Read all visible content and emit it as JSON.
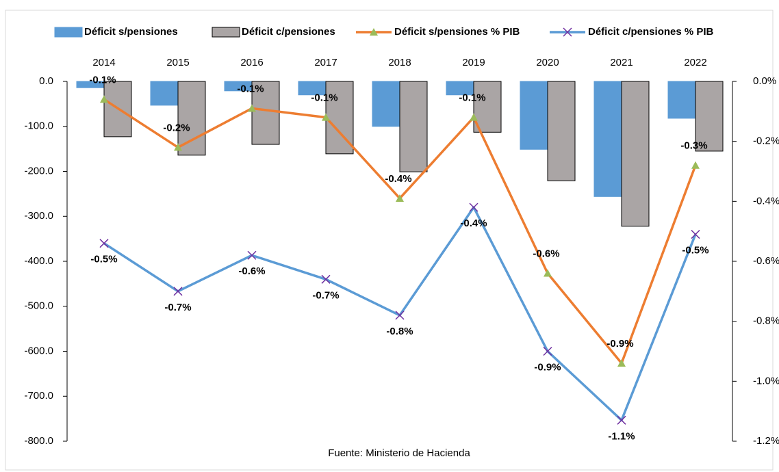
{
  "chart_data": {
    "type": "bar_line",
    "categories": [
      "2014",
      "2015",
      "2016",
      "2017",
      "2018",
      "2019",
      "2020",
      "2021",
      "2022"
    ],
    "series": [
      {
        "name": "Déficit s/pensiones",
        "type": "bar",
        "color": "#5b9bd5",
        "values": [
          -14,
          -53,
          -21,
          -30,
          -100,
          -30,
          -151,
          -256,
          -82
        ]
      },
      {
        "name": "Déficit c/pensiones",
        "type": "bar",
        "color": "#aaa5a5",
        "values": [
          -123,
          -164,
          -140,
          -161,
          -201,
          -113,
          -221,
          -322,
          -155
        ]
      },
      {
        "name": "Déficit  s/pensiones % PIB",
        "type": "line",
        "axis": "y2",
        "color": "#ed7d31",
        "marker_color": "#9bbb59",
        "values": [
          -0.06,
          -0.22,
          -0.09,
          -0.12,
          -0.39,
          -0.12,
          -0.64,
          -0.94,
          -0.28
        ],
        "value_labels": [
          "-0.1%",
          "-0.2%",
          "-0.1%",
          "-0.1%",
          "-0.4%",
          "-0.1%",
          "-0.6%",
          "-0.9%",
          "-0.3%"
        ]
      },
      {
        "name": "Déficit  c/pensiones % PIB",
        "type": "line",
        "axis": "y2",
        "color": "#5b9bd5",
        "marker_color": "#7030a0",
        "values": [
          -0.54,
          -0.7,
          -0.58,
          -0.66,
          -0.78,
          -0.42,
          -0.9,
          -1.13,
          -0.51
        ],
        "value_labels": [
          "-0.5%",
          "-0.7%",
          "-0.6%",
          "-0.7%",
          "-0.8%",
          "-0.4%",
          "-0.9%",
          "-1.1%",
          "-0.5%"
        ]
      }
    ],
    "ylim": [
      -800,
      0
    ],
    "yticks": [
      {
        "value": 0,
        "label": "0.0"
      },
      {
        "value": -100,
        "label": "-100.0"
      },
      {
        "value": -200,
        "label": "-200.0"
      },
      {
        "value": -300,
        "label": "-300.0"
      },
      {
        "value": -400,
        "label": "-400.0"
      },
      {
        "value": -500,
        "label": "-500.0"
      },
      {
        "value": -600,
        "label": "-600.0"
      },
      {
        "value": -700,
        "label": "-700.0"
      },
      {
        "value": -800,
        "label": "-800.0"
      }
    ],
    "y2lim": [
      -1.2,
      0
    ],
    "y2ticks": [
      {
        "value": 0,
        "label": "0.0%"
      },
      {
        "value": -0.2,
        "label": "-0.2%"
      },
      {
        "value": -0.4,
        "label": "-0.4%"
      },
      {
        "value": -0.6,
        "label": "-0.6%"
      },
      {
        "value": -0.8,
        "label": "-0.8%"
      },
      {
        "value": -1.0,
        "label": "-1.0%"
      },
      {
        "value": -1.2,
        "label": "-1.2%"
      }
    ],
    "legend": "top",
    "source": "Fuente:  Ministerio de Hacienda"
  }
}
